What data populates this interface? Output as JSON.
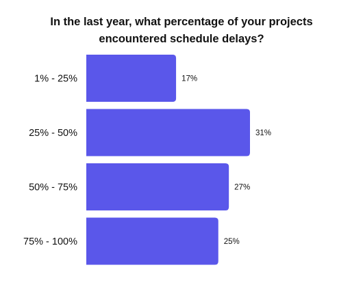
{
  "chart_data": {
    "type": "bar",
    "orientation": "horizontal",
    "title_lines": [
      "In the last year, what percentage of your projects",
      "encountered schedule delays?"
    ],
    "categories": [
      "1% - 25%",
      "25% - 50%",
      "50% - 75%",
      "75% - 100%"
    ],
    "values": [
      17,
      31,
      27,
      25
    ],
    "value_labels": [
      "17%",
      "31%",
      "27%",
      "25%"
    ],
    "xlim": [
      0,
      31
    ],
    "grid": false,
    "legend": "none",
    "bar_color": "#5a57ea"
  }
}
